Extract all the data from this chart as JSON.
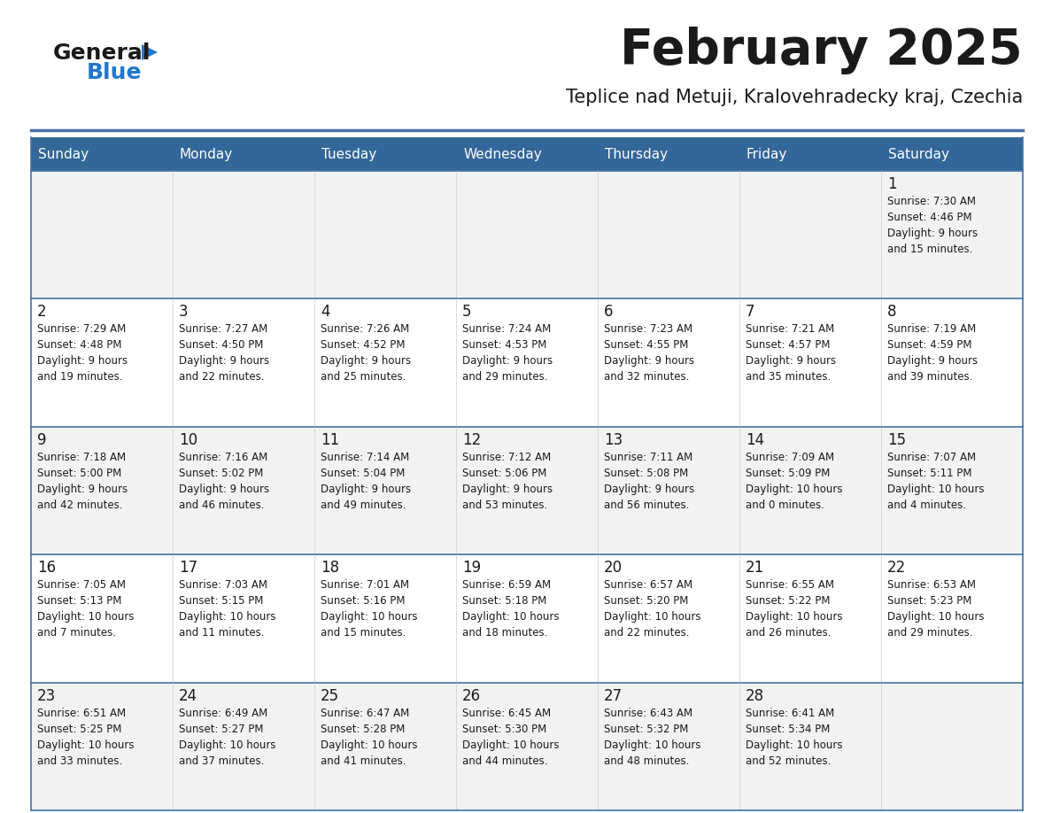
{
  "title": "February 2025",
  "subtitle": "Teplice nad Metuji, Kralovehradecky kraj, Czechia",
  "days_of_week": [
    "Sunday",
    "Monday",
    "Tuesday",
    "Wednesday",
    "Thursday",
    "Friday",
    "Saturday"
  ],
  "header_bg": "#336699",
  "header_text": "#ffffff",
  "row_bg_odd": "#f2f2f2",
  "row_bg_even": "#ffffff",
  "separator_color": "#4472a8",
  "title_color": "#1a1a1a",
  "subtitle_color": "#1a1a1a",
  "text_color": "#1a1a1a",
  "logo_black": "#1a1a1a",
  "logo_blue": "#2277cc",
  "calendar_data": [
    [
      null,
      null,
      null,
      null,
      null,
      null,
      {
        "day": 1,
        "sunrise": "7:30 AM",
        "sunset": "4:46 PM",
        "daylight": "9 hours and 15 minutes."
      }
    ],
    [
      {
        "day": 2,
        "sunrise": "7:29 AM",
        "sunset": "4:48 PM",
        "daylight": "9 hours and 19 minutes."
      },
      {
        "day": 3,
        "sunrise": "7:27 AM",
        "sunset": "4:50 PM",
        "daylight": "9 hours and 22 minutes."
      },
      {
        "day": 4,
        "sunrise": "7:26 AM",
        "sunset": "4:52 PM",
        "daylight": "9 hours and 25 minutes."
      },
      {
        "day": 5,
        "sunrise": "7:24 AM",
        "sunset": "4:53 PM",
        "daylight": "9 hours and 29 minutes."
      },
      {
        "day": 6,
        "sunrise": "7:23 AM",
        "sunset": "4:55 PM",
        "daylight": "9 hours and 32 minutes."
      },
      {
        "day": 7,
        "sunrise": "7:21 AM",
        "sunset": "4:57 PM",
        "daylight": "9 hours and 35 minutes."
      },
      {
        "day": 8,
        "sunrise": "7:19 AM",
        "sunset": "4:59 PM",
        "daylight": "9 hours and 39 minutes."
      }
    ],
    [
      {
        "day": 9,
        "sunrise": "7:18 AM",
        "sunset": "5:00 PM",
        "daylight": "9 hours and 42 minutes."
      },
      {
        "day": 10,
        "sunrise": "7:16 AM",
        "sunset": "5:02 PM",
        "daylight": "9 hours and 46 minutes."
      },
      {
        "day": 11,
        "sunrise": "7:14 AM",
        "sunset": "5:04 PM",
        "daylight": "9 hours and 49 minutes."
      },
      {
        "day": 12,
        "sunrise": "7:12 AM",
        "sunset": "5:06 PM",
        "daylight": "9 hours and 53 minutes."
      },
      {
        "day": 13,
        "sunrise": "7:11 AM",
        "sunset": "5:08 PM",
        "daylight": "9 hours and 56 minutes."
      },
      {
        "day": 14,
        "sunrise": "7:09 AM",
        "sunset": "5:09 PM",
        "daylight": "10 hours and 0 minutes."
      },
      {
        "day": 15,
        "sunrise": "7:07 AM",
        "sunset": "5:11 PM",
        "daylight": "10 hours and 4 minutes."
      }
    ],
    [
      {
        "day": 16,
        "sunrise": "7:05 AM",
        "sunset": "5:13 PM",
        "daylight": "10 hours and 7 minutes."
      },
      {
        "day": 17,
        "sunrise": "7:03 AM",
        "sunset": "5:15 PM",
        "daylight": "10 hours and 11 minutes."
      },
      {
        "day": 18,
        "sunrise": "7:01 AM",
        "sunset": "5:16 PM",
        "daylight": "10 hours and 15 minutes."
      },
      {
        "day": 19,
        "sunrise": "6:59 AM",
        "sunset": "5:18 PM",
        "daylight": "10 hours and 18 minutes."
      },
      {
        "day": 20,
        "sunrise": "6:57 AM",
        "sunset": "5:20 PM",
        "daylight": "10 hours and 22 minutes."
      },
      {
        "day": 21,
        "sunrise": "6:55 AM",
        "sunset": "5:22 PM",
        "daylight": "10 hours and 26 minutes."
      },
      {
        "day": 22,
        "sunrise": "6:53 AM",
        "sunset": "5:23 PM",
        "daylight": "10 hours and 29 minutes."
      }
    ],
    [
      {
        "day": 23,
        "sunrise": "6:51 AM",
        "sunset": "5:25 PM",
        "daylight": "10 hours and 33 minutes."
      },
      {
        "day": 24,
        "sunrise": "6:49 AM",
        "sunset": "5:27 PM",
        "daylight": "10 hours and 37 minutes."
      },
      {
        "day": 25,
        "sunrise": "6:47 AM",
        "sunset": "5:28 PM",
        "daylight": "10 hours and 41 minutes."
      },
      {
        "day": 26,
        "sunrise": "6:45 AM",
        "sunset": "5:30 PM",
        "daylight": "10 hours and 44 minutes."
      },
      {
        "day": 27,
        "sunrise": "6:43 AM",
        "sunset": "5:32 PM",
        "daylight": "10 hours and 48 minutes."
      },
      {
        "day": 28,
        "sunrise": "6:41 AM",
        "sunset": "5:34 PM",
        "daylight": "10 hours and 52 minutes."
      },
      null
    ]
  ]
}
